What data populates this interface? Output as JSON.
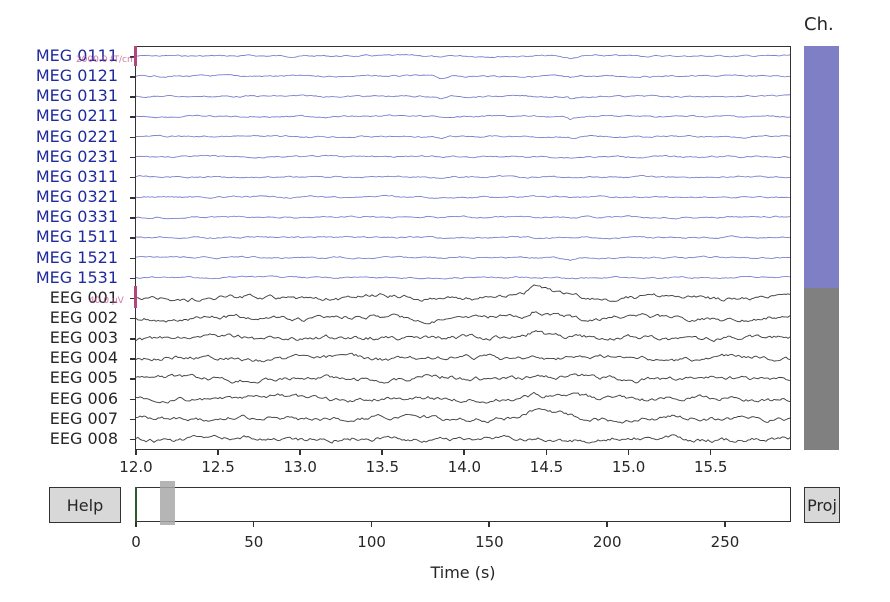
{
  "channel_selector": {
    "title": "Ch.",
    "colors": {
      "meg": "#7f7fc6",
      "eeg": "#808080"
    }
  },
  "channels": [
    {
      "name": "MEG 0111",
      "type": "meg"
    },
    {
      "name": "MEG 0121",
      "type": "meg"
    },
    {
      "name": "MEG 0131",
      "type": "meg"
    },
    {
      "name": "MEG 0211",
      "type": "meg"
    },
    {
      "name": "MEG 0221",
      "type": "meg"
    },
    {
      "name": "MEG 0231",
      "type": "meg"
    },
    {
      "name": "MEG 0311",
      "type": "meg"
    },
    {
      "name": "MEG 0321",
      "type": "meg"
    },
    {
      "name": "MEG 0331",
      "type": "meg"
    },
    {
      "name": "MEG 1511",
      "type": "meg"
    },
    {
      "name": "MEG 1521",
      "type": "meg"
    },
    {
      "name": "MEG 1531",
      "type": "meg"
    },
    {
      "name": "EEG 001",
      "type": "eeg"
    },
    {
      "name": "EEG 002",
      "type": "eeg"
    },
    {
      "name": "EEG 003",
      "type": "eeg"
    },
    {
      "name": "EEG 004",
      "type": "eeg"
    },
    {
      "name": "EEG 005",
      "type": "eeg"
    },
    {
      "name": "EEG 006",
      "type": "eeg"
    },
    {
      "name": "EEG 007",
      "type": "eeg"
    },
    {
      "name": "EEG 008",
      "type": "eeg"
    }
  ],
  "scalebars": {
    "meg": "2000.0 fT/cm",
    "eeg": "40.0 µV"
  },
  "time_axis": {
    "ticks": [
      "12.0",
      "12.5",
      "13.0",
      "13.5",
      "14.0",
      "14.5",
      "15.0",
      "15.5"
    ]
  },
  "scrollbar": {
    "ticks": [
      "0",
      "50",
      "100",
      "150",
      "200",
      "250"
    ],
    "xlabel": "Time (s)"
  },
  "buttons": {
    "help": "Help",
    "proj": "Proj"
  },
  "colors": {
    "meg_trace": "#3a46b8",
    "eeg_trace": "#262626",
    "scalebar": "#b3467c"
  }
}
